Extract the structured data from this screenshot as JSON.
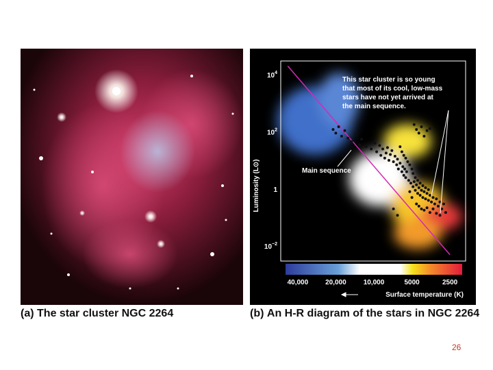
{
  "panel_a": {
    "label": "(a)",
    "caption": "The star cluster NGC 2264"
  },
  "panel_b": {
    "label": "(b)",
    "caption": "An H-R diagram of the stars in NGC 2264"
  },
  "slide_number": "26",
  "chart_data": {
    "type": "scatter",
    "title": "",
    "xlabel": "Surface temperature (K)",
    "ylabel": "Luminosity (L⊙)",
    "x_scale": "log-reversed",
    "y_scale": "log",
    "xlim": [
      50000,
      2000
    ],
    "ylim": [
      0.003,
      30000
    ],
    "x_ticks": [
      {
        "value": 40000,
        "label": "40,000"
      },
      {
        "value": 20000,
        "label": "20,000"
      },
      {
        "value": 10000,
        "label": "10,000"
      },
      {
        "value": 5000,
        "label": "5000"
      },
      {
        "value": 2500,
        "label": "2500"
      }
    ],
    "y_ticks": [
      {
        "value": 10000,
        "label": "10",
        "sup": "4"
      },
      {
        "value": 100,
        "label": "10",
        "sup": "2"
      },
      {
        "value": 1,
        "label": "1",
        "sup": ""
      },
      {
        "value": 0.01,
        "label": "10",
        "sup": "−2"
      }
    ],
    "annotations": {
      "young_note": [
        "This star cluster is so young",
        "that most of its cool, low-mass",
        "stars have not yet arrived at",
        "the main sequence."
      ],
      "main_sequence_label": "Main sequence"
    },
    "main_sequence_line": [
      {
        "x": 48000,
        "y": 20000
      },
      {
        "x": 2500,
        "y": 0.005
      }
    ],
    "points": [
      {
        "x": 21000,
        "y": 120
      },
      {
        "x": 20000,
        "y": 90
      },
      {
        "x": 19000,
        "y": 150
      },
      {
        "x": 18000,
        "y": 70
      },
      {
        "x": 17000,
        "y": 110
      },
      {
        "x": 16000,
        "y": 60
      },
      {
        "x": 15000,
        "y": 45
      },
      {
        "x": 14000,
        "y": 80
      },
      {
        "x": 13000,
        "y": 35
      },
      {
        "x": 12500,
        "y": 55
      },
      {
        "x": 11500,
        "y": 30
      },
      {
        "x": 10500,
        "y": 25
      },
      {
        "x": 9800,
        "y": 40
      },
      {
        "x": 9500,
        "y": 20
      },
      {
        "x": 9000,
        "y": 33
      },
      {
        "x": 8800,
        "y": 15
      },
      {
        "x": 8500,
        "y": 25
      },
      {
        "x": 8200,
        "y": 12
      },
      {
        "x": 8000,
        "y": 18
      },
      {
        "x": 7800,
        "y": 28
      },
      {
        "x": 7600,
        "y": 10
      },
      {
        "x": 7400,
        "y": 16
      },
      {
        "x": 7200,
        "y": 22
      },
      {
        "x": 7000,
        "y": 9
      },
      {
        "x": 6800,
        "y": 14
      },
      {
        "x": 6600,
        "y": 7
      },
      {
        "x": 6500,
        "y": 11
      },
      {
        "x": 6400,
        "y": 5
      },
      {
        "x": 6200,
        "y": 8
      },
      {
        "x": 6000,
        "y": 4
      },
      {
        "x": 5900,
        "y": 6
      },
      {
        "x": 5800,
        "y": 3
      },
      {
        "x": 5700,
        "y": 5
      },
      {
        "x": 5600,
        "y": 2.5
      },
      {
        "x": 5500,
        "y": 4
      },
      {
        "x": 4800,
        "y": 180
      },
      {
        "x": 4600,
        "y": 120
      },
      {
        "x": 4400,
        "y": 90
      },
      {
        "x": 4200,
        "y": 150
      },
      {
        "x": 4000,
        "y": 70
      },
      {
        "x": 3800,
        "y": 110
      },
      {
        "x": 3600,
        "y": 130
      },
      {
        "x": 6200,
        "y": 30
      },
      {
        "x": 6000,
        "y": 20
      },
      {
        "x": 5800,
        "y": 15
      },
      {
        "x": 5600,
        "y": 12
      },
      {
        "x": 5400,
        "y": 9
      },
      {
        "x": 5200,
        "y": 7
      },
      {
        "x": 5000,
        "y": 5
      },
      {
        "x": 4900,
        "y": 3.5
      },
      {
        "x": 5300,
        "y": 2
      },
      {
        "x": 5100,
        "y": 1.6
      },
      {
        "x": 4900,
        "y": 1.2
      },
      {
        "x": 4800,
        "y": 1.8
      },
      {
        "x": 4700,
        "y": 0.9
      },
      {
        "x": 4600,
        "y": 1.4
      },
      {
        "x": 4500,
        "y": 0.7
      },
      {
        "x": 4400,
        "y": 1.1
      },
      {
        "x": 4300,
        "y": 0.6
      },
      {
        "x": 4200,
        "y": 0.9
      },
      {
        "x": 4100,
        "y": 0.5
      },
      {
        "x": 4000,
        "y": 0.8
      },
      {
        "x": 3900,
        "y": 0.45
      },
      {
        "x": 3800,
        "y": 0.7
      },
      {
        "x": 3700,
        "y": 0.4
      },
      {
        "x": 3600,
        "y": 0.6
      },
      {
        "x": 3500,
        "y": 0.35
      },
      {
        "x": 3400,
        "y": 0.5
      },
      {
        "x": 3300,
        "y": 0.3
      },
      {
        "x": 3200,
        "y": 0.45
      },
      {
        "x": 3100,
        "y": 0.25
      },
      {
        "x": 3000,
        "y": 0.35
      },
      {
        "x": 2900,
        "y": 0.2
      },
      {
        "x": 2800,
        "y": 0.3
      },
      {
        "x": 4600,
        "y": 0.3
      },
      {
        "x": 4400,
        "y": 0.25
      },
      {
        "x": 4200,
        "y": 0.2
      },
      {
        "x": 4000,
        "y": 0.18
      },
      {
        "x": 3800,
        "y": 0.22
      },
      {
        "x": 3600,
        "y": 0.15
      },
      {
        "x": 3400,
        "y": 0.2
      },
      {
        "x": 3200,
        "y": 0.14
      },
      {
        "x": 5000,
        "y": 0.5
      },
      {
        "x": 5200,
        "y": 0.8
      },
      {
        "x": 4700,
        "y": 2.5
      },
      {
        "x": 4500,
        "y": 2
      },
      {
        "x": 4300,
        "y": 1.6
      },
      {
        "x": 4100,
        "y": 1.3
      },
      {
        "x": 3900,
        "y": 1.1
      },
      {
        "x": 3700,
        "y": 0.95
      },
      {
        "x": 7000,
        "y": 0.2
      },
      {
        "x": 6500,
        "y": 0.12
      },
      {
        "x": 3000,
        "y": 0.12
      },
      {
        "x": 2700,
        "y": 0.15
      }
    ]
  }
}
